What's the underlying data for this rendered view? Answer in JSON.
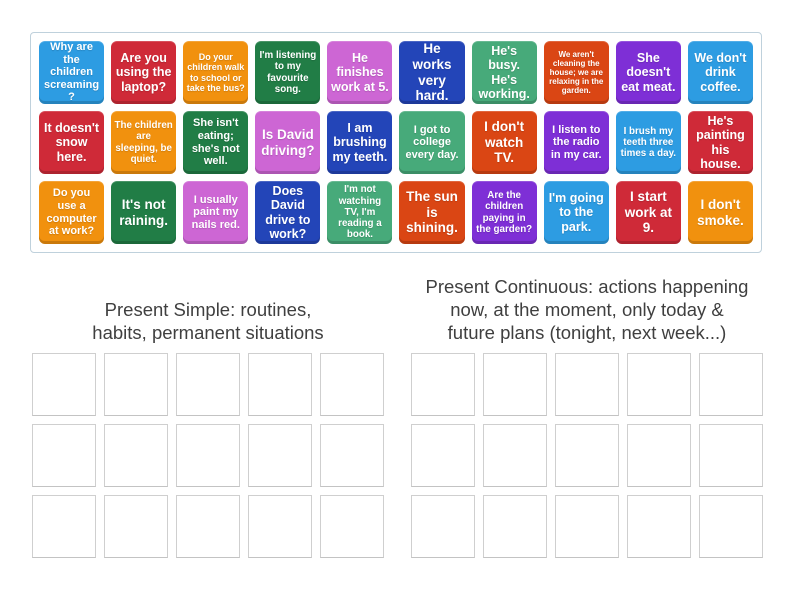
{
  "palette": {
    "blue": "#2d9ce2",
    "crimson": "#cf2a38",
    "orange": "#f1910e",
    "green": "#217d46",
    "orchid": "#cd66d4",
    "darkblue": "#2345b8",
    "seagreen": "#47aa7a",
    "vermilion": "#da4614",
    "purple": "#7e2fd6"
  },
  "tray": {
    "tiles": [
      {
        "text": "Why are the children screaming?",
        "color": "blue"
      },
      {
        "text": "Are you using the laptop?",
        "color": "crimson"
      },
      {
        "text": "Do your children walk to school or take the bus?",
        "color": "orange"
      },
      {
        "text": "I'm listening to my favourite song.",
        "color": "green"
      },
      {
        "text": "He finishes work at 5.",
        "color": "orchid"
      },
      {
        "text": "He works very hard.",
        "color": "darkblue"
      },
      {
        "text": "He's busy. He's working.",
        "color": "seagreen"
      },
      {
        "text": "We aren't cleaning the house; we are relaxing in the garden.",
        "color": "vermilion"
      },
      {
        "text": "She doesn't eat meat.",
        "color": "purple"
      },
      {
        "text": "We don't drink coffee.",
        "color": "blue"
      },
      {
        "text": "It doesn't snow here.",
        "color": "crimson"
      },
      {
        "text": "The children are sleeping, be quiet.",
        "color": "orange"
      },
      {
        "text": "She isn't eating; she's not well.",
        "color": "green"
      },
      {
        "text": "Is David driving?",
        "color": "orchid"
      },
      {
        "text": "I am brushing my teeth.",
        "color": "darkblue"
      },
      {
        "text": "I got to college every day.",
        "color": "seagreen"
      },
      {
        "text": "I don't watch TV.",
        "color": "vermilion"
      },
      {
        "text": "I listen to the radio in my car.",
        "color": "purple"
      },
      {
        "text": "I brush my teeth three times a day.",
        "color": "blue"
      },
      {
        "text": "He's painting his house.",
        "color": "crimson"
      },
      {
        "text": "Do you use a computer at work?",
        "color": "orange"
      },
      {
        "text": "It's not raining.",
        "color": "green"
      },
      {
        "text": "I usually paint my nails red.",
        "color": "orchid"
      },
      {
        "text": "Does David drive to work?",
        "color": "darkblue"
      },
      {
        "text": "I'm not watching TV, I'm reading a book.",
        "color": "seagreen"
      },
      {
        "text": "The sun is shining.",
        "color": "vermilion"
      },
      {
        "text": "Are the children paying in the garden?",
        "color": "purple"
      },
      {
        "text": "I'm going to the park.",
        "color": "blue"
      },
      {
        "text": "I start work at 9.",
        "color": "crimson"
      },
      {
        "text": "I don't smoke.",
        "color": "orange"
      }
    ]
  },
  "groups": [
    {
      "title": "Present Simple: routines, habits, permanent situations",
      "title_lines": [
        "Present Simple: routines,",
        "habits, permanent situations"
      ],
      "slot_count": 15
    },
    {
      "title": "Present Continuous: actions happening now, at the moment, only today & future plans (tonight, next week...)",
      "title_lines": [
        "Present Continuous: actions happening",
        "now, at the moment, only today &",
        "future plans (tonight, next week...)"
      ],
      "slot_count": 15
    }
  ]
}
